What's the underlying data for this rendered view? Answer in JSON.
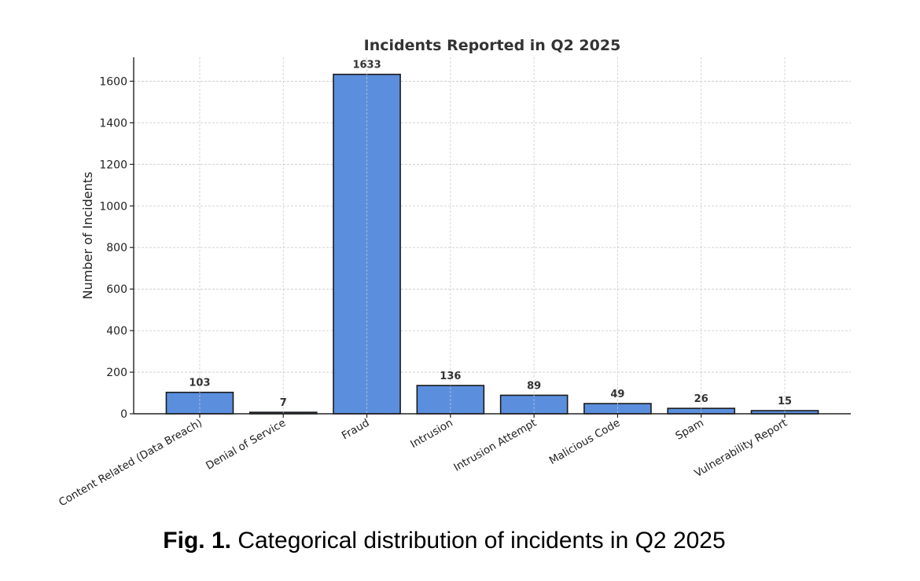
{
  "chart_data": {
    "type": "bar",
    "title": "Incidents Reported in Q2 2025",
    "xlabel": "",
    "ylabel": "Number of Incidents",
    "categories": [
      "Content Related (Data Breach)",
      "Denial of Service",
      "Fraud",
      "Intrusion",
      "Intrusion Attempt",
      "Malicious Code",
      "Spam",
      "Vulnerability Report"
    ],
    "values": [
      103,
      7,
      1633,
      136,
      89,
      49,
      26,
      15
    ],
    "data_labels": [
      "103",
      "7",
      "1633",
      "136",
      "89",
      "49",
      "26",
      "15"
    ],
    "ylim": [
      0,
      1715
    ],
    "yticks": [
      0,
      200,
      400,
      600,
      800,
      1000,
      1200,
      1400,
      1600
    ],
    "ytick_labels": [
      "0",
      "200",
      "400",
      "600",
      "800",
      "1000",
      "1200",
      "1400",
      "1600"
    ],
    "grid": true,
    "legend": "none",
    "bar_color": "#5b8fde",
    "edge_color": "#1a1a1a",
    "xtick_rotation_deg": 30
  },
  "caption": {
    "label": "Fig. 1.",
    "text": " Categorical distribution of incidents in Q2 2025"
  }
}
